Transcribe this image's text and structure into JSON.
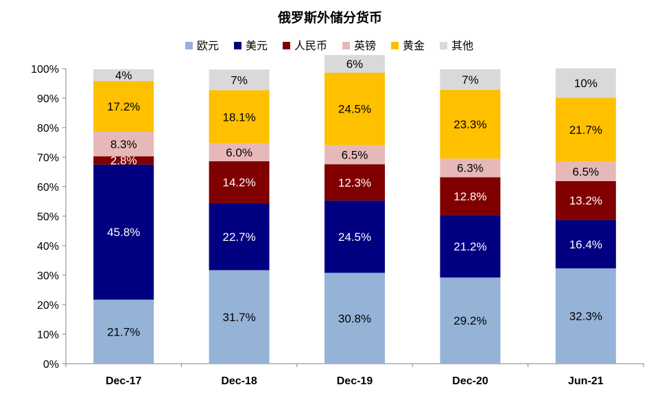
{
  "chart_data": {
    "type": "bar",
    "stacked": true,
    "title": "俄罗斯外储分货币",
    "categories": [
      "Dec-17",
      "Dec-18",
      "Dec-19",
      "Dec-20",
      "Jun-21"
    ],
    "ylim": [
      0,
      100
    ],
    "yticks": [
      "0%",
      "10%",
      "20%",
      "30%",
      "40%",
      "50%",
      "60%",
      "70%",
      "80%",
      "90%",
      "100%"
    ],
    "legend_position": "top",
    "grid": false,
    "series": [
      {
        "name": "欧元",
        "color": "#95B3D7",
        "label_color": "#000000",
        "values": [
          21.7,
          31.7,
          30.8,
          29.2,
          32.3
        ],
        "labels": [
          "21.7%",
          "31.7%",
          "30.8%",
          "29.2%",
          "32.3%"
        ]
      },
      {
        "name": "美元",
        "color": "#000080",
        "label_color": "#FFFFFF",
        "values": [
          45.8,
          22.7,
          24.5,
          21.2,
          16.4
        ],
        "labels": [
          "45.8%",
          "22.7%",
          "24.5%",
          "21.2%",
          "16.4%"
        ]
      },
      {
        "name": "人民币",
        "color": "#800000",
        "label_color": "#FFFFFF",
        "values": [
          2.8,
          14.2,
          12.3,
          12.8,
          13.2
        ],
        "labels": [
          "2.8%",
          "14.2%",
          "12.3%",
          "12.8%",
          "13.2%"
        ]
      },
      {
        "name": "英镑",
        "color": "#E6B9B8",
        "label_color": "#000000",
        "values": [
          8.3,
          6.0,
          6.5,
          6.3,
          6.5
        ],
        "labels": [
          "8.3%",
          "6.0%",
          "6.5%",
          "6.3%",
          "6.5%"
        ]
      },
      {
        "name": "黄金",
        "color": "#FFC000",
        "label_color": "#000000",
        "values": [
          17.2,
          18.1,
          24.5,
          23.3,
          21.7
        ],
        "labels": [
          "17.2%",
          "18.1%",
          "24.5%",
          "23.3%",
          "21.7%"
        ]
      },
      {
        "name": "其他",
        "color": "#D9D9D9",
        "label_color": "#000000",
        "values": [
          4,
          7,
          6,
          7,
          10
        ],
        "labels": [
          "4%",
          "7%",
          "6%",
          "7%",
          "10%"
        ]
      }
    ]
  }
}
